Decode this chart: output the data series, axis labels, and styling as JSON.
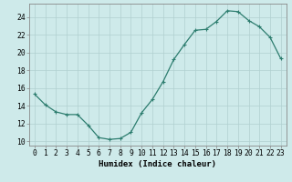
{
  "x": [
    0,
    1,
    2,
    3,
    4,
    5,
    6,
    7,
    8,
    9,
    10,
    11,
    12,
    13,
    14,
    15,
    16,
    17,
    18,
    19,
    20,
    21,
    22,
    23
  ],
  "y": [
    15.3,
    14.1,
    13.3,
    13.0,
    13.0,
    11.8,
    10.4,
    10.2,
    10.3,
    11.0,
    13.2,
    14.7,
    16.7,
    19.2,
    20.9,
    22.5,
    22.6,
    23.5,
    24.7,
    24.6,
    23.6,
    22.9,
    21.7,
    19.3
  ],
  "xlabel": "Humidex (Indice chaleur)",
  "xlim": [
    -0.5,
    23.5
  ],
  "ylim": [
    9.5,
    25.5
  ],
  "yticks": [
    10,
    12,
    14,
    16,
    18,
    20,
    22,
    24
  ],
  "xticks": [
    0,
    1,
    2,
    3,
    4,
    5,
    6,
    7,
    8,
    9,
    10,
    11,
    12,
    13,
    14,
    15,
    16,
    17,
    18,
    19,
    20,
    21,
    22,
    23
  ],
  "line_color": "#2d7d6f",
  "marker_color": "#2d7d6f",
  "bg_color": "#ceeaea",
  "grid_color": "#b0d0d0",
  "xlabel_fontsize": 6.5,
  "tick_fontsize": 5.8,
  "linewidth": 0.9,
  "markersize": 2.5
}
